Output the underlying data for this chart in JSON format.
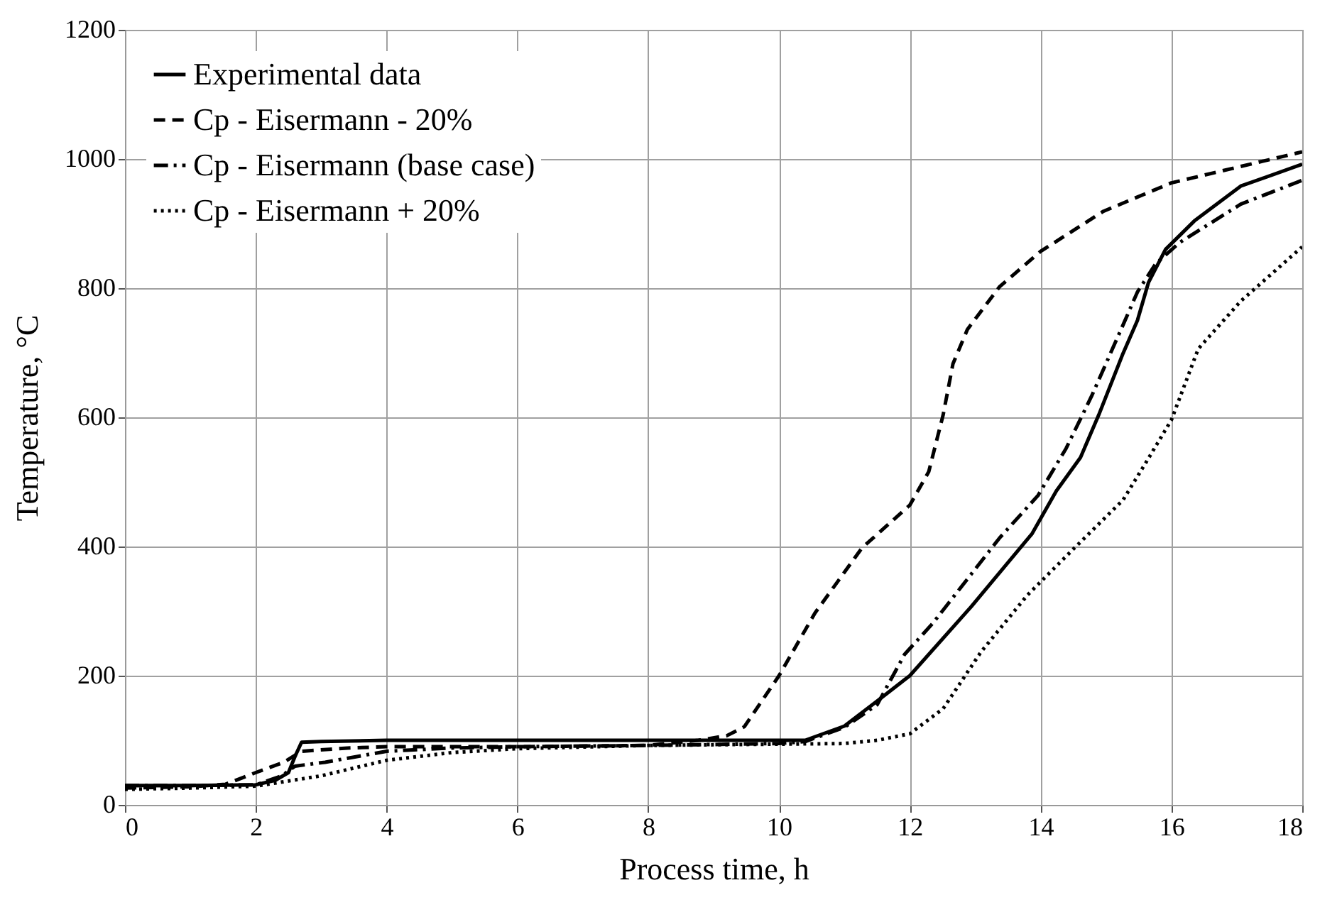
{
  "chart_data": {
    "type": "line",
    "xlabel": "Process time, h",
    "ylabel": "Temperature, °C",
    "xlim": [
      0,
      18
    ],
    "xticks": [
      0,
      2,
      4,
      6,
      8,
      10,
      12,
      14,
      16,
      18
    ],
    "ylim": [
      0,
      1200
    ],
    "yticks": [
      0,
      200,
      400,
      600,
      800,
      1000,
      1200
    ],
    "grid": true,
    "legend": "top left",
    "series": [
      {
        "name": "Experimental data",
        "color": "#000000",
        "line_style": "solid",
        "x": [
          0,
          1,
          2,
          2.3,
          2.5,
          2.6,
          2.7,
          3,
          4,
          6,
          8,
          10,
          10.4,
          11,
          11.49,
          12,
          12.94,
          13.87,
          14.24,
          14.61,
          14.89,
          15.26,
          15.48,
          15.65,
          15.91,
          16.35,
          17.06,
          18
        ],
        "values": [
          30,
          30,
          31,
          38,
          50,
          75,
          97,
          98,
          100,
          100,
          100,
          100,
          100,
          122,
          160,
          200,
          307,
          420,
          486,
          538,
          604,
          699,
          750,
          809,
          860,
          904,
          958,
          992
        ]
      },
      {
        "name": "Cp - Eisermann - 20%",
        "color": "#000000",
        "line_style": "dashed",
        "x": [
          0,
          1,
          1.54,
          2,
          2.43,
          2.7,
          3.4,
          4,
          6,
          8,
          8.77,
          9.2,
          9.47,
          10,
          10.55,
          11.27,
          12,
          12.29,
          12.51,
          12.66,
          12.88,
          13.37,
          14,
          14.96,
          16,
          18
        ],
        "values": [
          26,
          28,
          32,
          50,
          66,
          83,
          88,
          90,
          90,
          92,
          100,
          107,
          121,
          200,
          297,
          398,
          464,
          516,
          604,
          683,
          736,
          802,
          857,
          919,
          963,
          1011
        ]
      },
      {
        "name": "Cp - Eisermann (base case)",
        "color": "#000000",
        "line_style": "dashdot",
        "x": [
          0,
          1,
          2,
          2.4,
          2.6,
          3.06,
          4,
          5,
          6,
          8,
          10,
          10.4,
          11,
          11.5,
          11.92,
          12.35,
          13.37,
          13.96,
          14.39,
          14.78,
          15.26,
          15.48,
          15.76,
          16.13,
          17.06,
          18
        ],
        "values": [
          30,
          30,
          31,
          45,
          60,
          66,
          83,
          88,
          90,
          92,
          95,
          98,
          120,
          155,
          233,
          281,
          413,
          479,
          552,
          633,
          743,
          794,
          838,
          871,
          930,
          967
        ]
      },
      {
        "name": "Cp - Eisermann + 20%",
        "color": "#000000",
        "line_style": "dotted",
        "x": [
          0,
          1,
          2,
          3,
          4,
          5,
          6,
          8,
          10,
          11,
          11.5,
          12,
          12.51,
          13.09,
          13.8,
          14.52,
          15.26,
          15.61,
          16,
          16.41,
          17.06,
          18
        ],
        "values": [
          24,
          26,
          29,
          45,
          69,
          81,
          87,
          92,
          94,
          95,
          100,
          110,
          149,
          237,
          325,
          398,
          472,
          530,
          596,
          706,
          780,
          864
        ]
      }
    ]
  }
}
